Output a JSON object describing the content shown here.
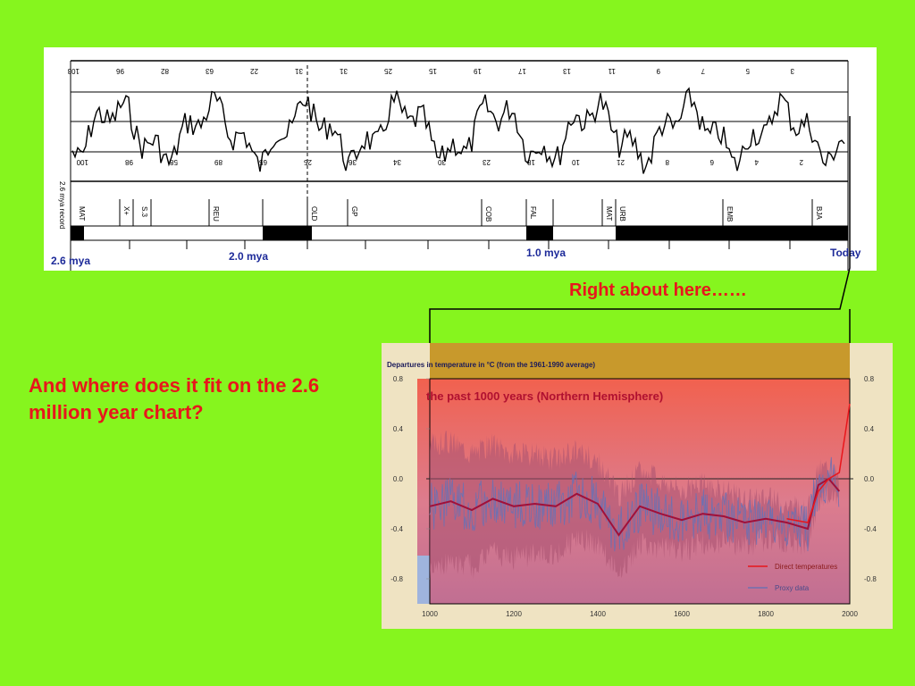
{
  "slide": {
    "pointer_text": "Right about here……",
    "question_text": "And where does it fit on the 2.6 million year chart?"
  },
  "top_chart": {
    "time_labels": {
      "start": "2.6 mya",
      "mid1": "2.0 mya",
      "mid2": "1.0 mya",
      "end": "Today"
    },
    "stage_numbers_top": [
      "103",
      "96",
      "82",
      "63",
      "22",
      "31",
      "31",
      "25",
      "15",
      "19",
      "17",
      "13",
      "11",
      "9",
      "7",
      "5",
      "3"
    ],
    "stage_numbers_bottom": [
      "100",
      "98",
      "58",
      "89",
      "65",
      "25",
      "36",
      "34",
      "30",
      "23",
      "18",
      "10",
      "21",
      "8",
      "6",
      "4",
      "2"
    ],
    "bar_colors": {
      "dark": "#000000",
      "light": "#ffffff"
    }
  },
  "chart_data": {
    "type": "line",
    "title": "Departures in temperature in °C (from the 1961-1990 average)",
    "subtitle": "the past 1000 years (Northern Hemisphere)",
    "x": [
      1000,
      1050,
      1100,
      1150,
      1200,
      1250,
      1300,
      1350,
      1400,
      1450,
      1500,
      1550,
      1600,
      1650,
      1700,
      1750,
      1800,
      1850,
      1900,
      1925,
      1950,
      1975,
      2000
    ],
    "series": [
      {
        "name": "Proxy data",
        "values": [
          -0.22,
          -0.18,
          -0.25,
          -0.16,
          -0.22,
          -0.2,
          -0.22,
          -0.12,
          -0.2,
          -0.45,
          -0.22,
          -0.28,
          -0.33,
          -0.28,
          -0.3,
          -0.35,
          -0.32,
          -0.35,
          -0.4,
          -0.05,
          0.0,
          -0.1,
          null
        ]
      },
      {
        "name": "Direct temperatures",
        "values": [
          null,
          null,
          null,
          null,
          null,
          null,
          null,
          null,
          null,
          null,
          null,
          null,
          null,
          null,
          null,
          null,
          null,
          -0.32,
          -0.35,
          -0.1,
          0.0,
          0.05,
          0.6
        ]
      }
    ],
    "ylim": [
      -1.0,
      0.8
    ],
    "xlim": [
      1000,
      2000
    ],
    "yticks": [
      "0.8",
      "0.4",
      "0.0",
      "-0.4",
      "-0.8"
    ],
    "xticks": [
      "1000",
      "1200",
      "1400",
      "1600",
      "1800",
      "2000"
    ],
    "colors": {
      "proxy": "#6a6aa8",
      "direct": "#e8161c",
      "smooth": "#b0103a"
    }
  }
}
